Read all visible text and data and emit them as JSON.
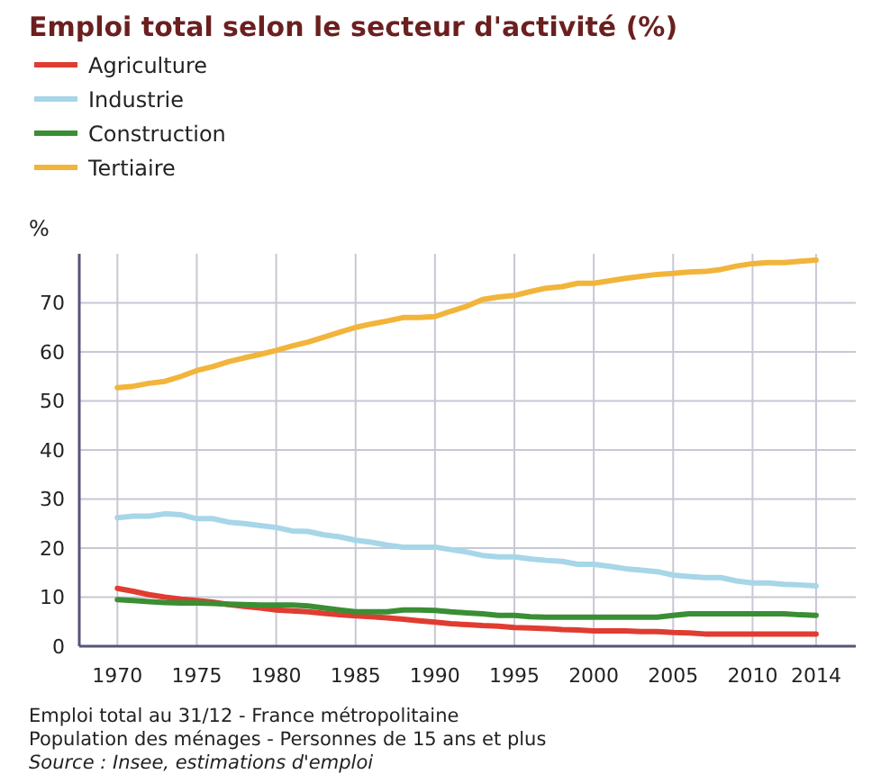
{
  "chart_data": {
    "type": "line",
    "title": "Emploi total selon le secteur d'activité (%)",
    "ylabel": "%",
    "x": [
      1970,
      1971,
      1972,
      1973,
      1974,
      1975,
      1976,
      1977,
      1978,
      1979,
      1980,
      1981,
      1982,
      1983,
      1984,
      1985,
      1986,
      1987,
      1988,
      1989,
      1990,
      1991,
      1992,
      1993,
      1994,
      1995,
      1996,
      1997,
      1998,
      1999,
      2000,
      2001,
      2002,
      2003,
      2004,
      2005,
      2006,
      2007,
      2008,
      2009,
      2010,
      2011,
      2012,
      2013,
      2014
    ],
    "series": [
      {
        "name": "Agriculture",
        "color": "#e03c31",
        "values": [
          11.8,
          11.2,
          10.5,
          10,
          9.6,
          9.3,
          9,
          8.5,
          8.1,
          7.8,
          7.4,
          7.2,
          7,
          6.7,
          6.4,
          6.2,
          6,
          5.8,
          5.5,
          5.2,
          4.9,
          4.6,
          4.4,
          4.2,
          4.1,
          3.8,
          3.7,
          3.6,
          3.4,
          3.3,
          3.1,
          3.1,
          3.1,
          3,
          3,
          2.8,
          2.7,
          2.5,
          2.5,
          2.5,
          2.5,
          2.5,
          2.5,
          2.5,
          2.5
        ]
      },
      {
        "name": "Industrie",
        "color": "#a6d6e8",
        "values": [
          26.2,
          26.5,
          26.5,
          27,
          26.8,
          26,
          26,
          25.3,
          25,
          24.6,
          24.2,
          23.5,
          23.4,
          22.7,
          22.3,
          21.6,
          21.2,
          20.6,
          20.2,
          20.2,
          20.2,
          19.7,
          19.2,
          18.5,
          18.2,
          18.2,
          17.8,
          17.5,
          17.3,
          16.7,
          16.7,
          16.3,
          15.8,
          15.5,
          15.2,
          14.5,
          14.2,
          14,
          14,
          13.3,
          12.9,
          12.9,
          12.6,
          12.5,
          12.3
        ]
      },
      {
        "name": "Construction",
        "color": "#3a8e34",
        "values": [
          9.5,
          9.3,
          9.1,
          8.9,
          8.8,
          8.8,
          8.7,
          8.6,
          8.5,
          8.4,
          8.4,
          8.4,
          8.2,
          7.8,
          7.4,
          7,
          7,
          7,
          7.4,
          7.4,
          7.3,
          7,
          6.8,
          6.6,
          6.3,
          6.3,
          6,
          5.9,
          5.9,
          5.9,
          5.9,
          5.9,
          5.9,
          5.9,
          5.9,
          6.3,
          6.6,
          6.6,
          6.6,
          6.6,
          6.6,
          6.6,
          6.6,
          6.4,
          6.3
        ]
      },
      {
        "name": "Tertiaire",
        "color": "#f2b43a",
        "values": [
          52.7,
          53,
          53.6,
          54,
          55,
          56.2,
          57,
          58,
          58.8,
          59.5,
          60.3,
          61.2,
          62,
          63,
          64,
          65,
          65.7,
          66.3,
          67,
          67,
          67.2,
          68.3,
          69.3,
          70.7,
          71.2,
          71.5,
          72.3,
          73,
          73.3,
          74,
          74,
          74.5,
          75,
          75.4,
          75.8,
          76,
          76.3,
          76.4,
          76.8,
          77.5,
          78,
          78.2,
          78.2,
          78.5,
          78.7
        ]
      }
    ],
    "xlim": [
      1967.6,
      2016.5
    ],
    "xticks": [
      1970,
      1975,
      1980,
      1985,
      1990,
      1995,
      2000,
      2005,
      2010,
      2014
    ],
    "ylim": [
      0,
      80
    ],
    "yticks": [
      0,
      10,
      20,
      30,
      40,
      50,
      60,
      70
    ],
    "grid": true,
    "legend": "top left",
    "line_style": "solid",
    "marker": "none",
    "annotations": [
      "Emploi total au 31/12 - France métropolitaine",
      "Population des ménages - Personnes de 15 ans et plus",
      "Source : Insee, estimations d'emploi"
    ]
  }
}
